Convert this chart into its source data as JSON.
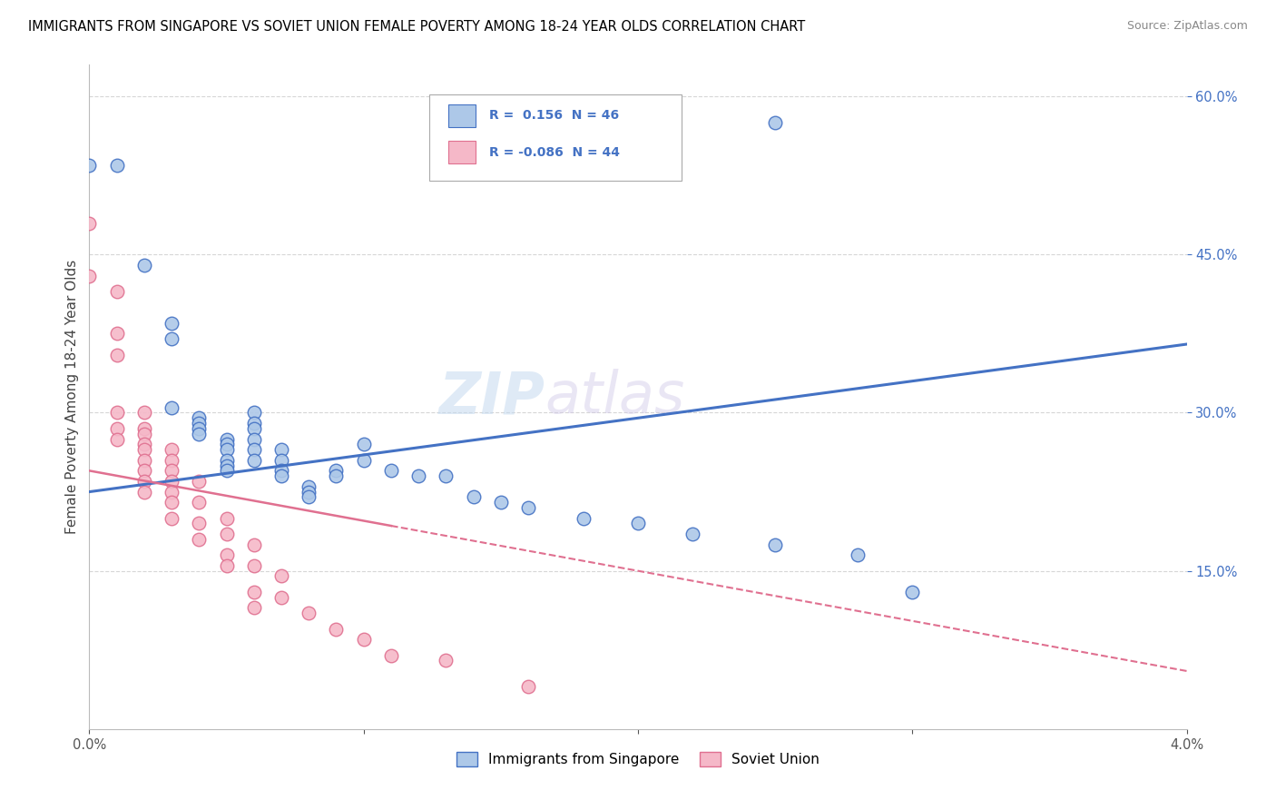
{
  "title": "IMMIGRANTS FROM SINGAPORE VS SOVIET UNION FEMALE POVERTY AMONG 18-24 YEAR OLDS CORRELATION CHART",
  "source": "Source: ZipAtlas.com",
  "ylabel": "Female Poverty Among 18-24 Year Olds",
  "x_min": 0.0,
  "x_max": 0.04,
  "y_min": 0.0,
  "y_max": 0.63,
  "legend_bottom": [
    "Immigrants from Singapore",
    "Soviet Union"
  ],
  "singapore_color": "#adc8e8",
  "soviet_color": "#f5b8c8",
  "singapore_line_color": "#4472c4",
  "soviet_line_color": "#e07090",
  "watermark_zip": "ZIP",
  "watermark_atlas": "atlas",
  "singapore_R": 0.156,
  "singapore_N": 46,
  "soviet_R": -0.086,
  "soviet_N": 44,
  "sg_line": [
    0.0,
    0.04,
    0.225,
    0.365
  ],
  "sv_line": [
    0.0,
    0.04,
    0.245,
    0.055
  ],
  "singapore_points": [
    [
      0.0,
      0.535
    ],
    [
      0.001,
      0.535
    ],
    [
      0.002,
      0.44
    ],
    [
      0.003,
      0.385
    ],
    [
      0.003,
      0.37
    ],
    [
      0.003,
      0.305
    ],
    [
      0.004,
      0.295
    ],
    [
      0.004,
      0.29
    ],
    [
      0.004,
      0.285
    ],
    [
      0.004,
      0.28
    ],
    [
      0.005,
      0.275
    ],
    [
      0.005,
      0.27
    ],
    [
      0.005,
      0.265
    ],
    [
      0.005,
      0.255
    ],
    [
      0.005,
      0.25
    ],
    [
      0.005,
      0.245
    ],
    [
      0.006,
      0.3
    ],
    [
      0.006,
      0.29
    ],
    [
      0.006,
      0.285
    ],
    [
      0.006,
      0.275
    ],
    [
      0.006,
      0.265
    ],
    [
      0.006,
      0.255
    ],
    [
      0.007,
      0.265
    ],
    [
      0.007,
      0.255
    ],
    [
      0.007,
      0.245
    ],
    [
      0.007,
      0.24
    ],
    [
      0.008,
      0.23
    ],
    [
      0.008,
      0.225
    ],
    [
      0.008,
      0.22
    ],
    [
      0.009,
      0.245
    ],
    [
      0.009,
      0.24
    ],
    [
      0.01,
      0.27
    ],
    [
      0.01,
      0.255
    ],
    [
      0.011,
      0.245
    ],
    [
      0.012,
      0.24
    ],
    [
      0.013,
      0.24
    ],
    [
      0.014,
      0.22
    ],
    [
      0.015,
      0.215
    ],
    [
      0.016,
      0.21
    ],
    [
      0.018,
      0.2
    ],
    [
      0.02,
      0.195
    ],
    [
      0.022,
      0.185
    ],
    [
      0.025,
      0.175
    ],
    [
      0.028,
      0.165
    ],
    [
      0.025,
      0.575
    ],
    [
      0.03,
      0.13
    ]
  ],
  "soviet_points": [
    [
      0.0,
      0.48
    ],
    [
      0.0,
      0.43
    ],
    [
      0.001,
      0.415
    ],
    [
      0.001,
      0.375
    ],
    [
      0.001,
      0.355
    ],
    [
      0.001,
      0.3
    ],
    [
      0.001,
      0.285
    ],
    [
      0.001,
      0.275
    ],
    [
      0.002,
      0.3
    ],
    [
      0.002,
      0.285
    ],
    [
      0.002,
      0.28
    ],
    [
      0.002,
      0.27
    ],
    [
      0.002,
      0.265
    ],
    [
      0.002,
      0.255
    ],
    [
      0.002,
      0.245
    ],
    [
      0.002,
      0.235
    ],
    [
      0.002,
      0.225
    ],
    [
      0.003,
      0.265
    ],
    [
      0.003,
      0.255
    ],
    [
      0.003,
      0.245
    ],
    [
      0.003,
      0.235
    ],
    [
      0.003,
      0.225
    ],
    [
      0.003,
      0.215
    ],
    [
      0.003,
      0.2
    ],
    [
      0.004,
      0.235
    ],
    [
      0.004,
      0.215
    ],
    [
      0.004,
      0.195
    ],
    [
      0.004,
      0.18
    ],
    [
      0.005,
      0.2
    ],
    [
      0.005,
      0.185
    ],
    [
      0.005,
      0.165
    ],
    [
      0.005,
      0.155
    ],
    [
      0.006,
      0.175
    ],
    [
      0.006,
      0.155
    ],
    [
      0.006,
      0.13
    ],
    [
      0.006,
      0.115
    ],
    [
      0.007,
      0.145
    ],
    [
      0.007,
      0.125
    ],
    [
      0.008,
      0.11
    ],
    [
      0.009,
      0.095
    ],
    [
      0.01,
      0.085
    ],
    [
      0.011,
      0.07
    ],
    [
      0.013,
      0.065
    ],
    [
      0.016,
      0.04
    ]
  ]
}
